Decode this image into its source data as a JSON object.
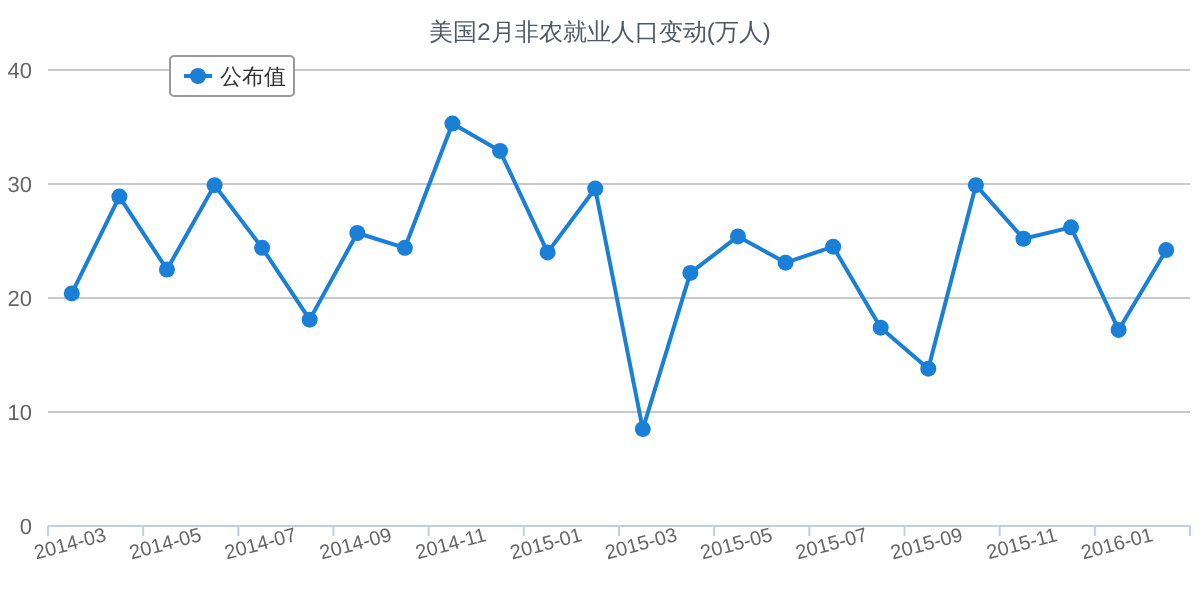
{
  "chart_data": {
    "type": "line",
    "title": "美国2月非农就业人口变动(万人)",
    "categories": [
      "2014-03",
      null,
      "2014-05",
      null,
      "2014-07",
      null,
      "2014-09",
      null,
      "2014-11",
      null,
      "2015-01",
      null,
      "2015-03",
      null,
      "2015-05",
      null,
      "2015-07",
      null,
      "2015-09",
      null,
      "2015-11",
      null,
      "2016-01",
      null
    ],
    "series": [
      {
        "name": "公布值",
        "color": "#1a7fd6",
        "values": [
          20.4,
          28.9,
          22.5,
          29.9,
          24.4,
          18.1,
          25.7,
          24.4,
          35.3,
          32.9,
          24.0,
          29.6,
          8.5,
          22.2,
          25.4,
          23.1,
          24.5,
          17.4,
          13.8,
          29.9,
          25.2,
          26.2,
          17.2,
          24.2
        ]
      }
    ],
    "ylim": [
      0,
      40
    ],
    "yticks": [
      0,
      10,
      20,
      30,
      40
    ],
    "grid": "y",
    "legend": "top left",
    "marker": "circle",
    "line_style": "solid"
  }
}
